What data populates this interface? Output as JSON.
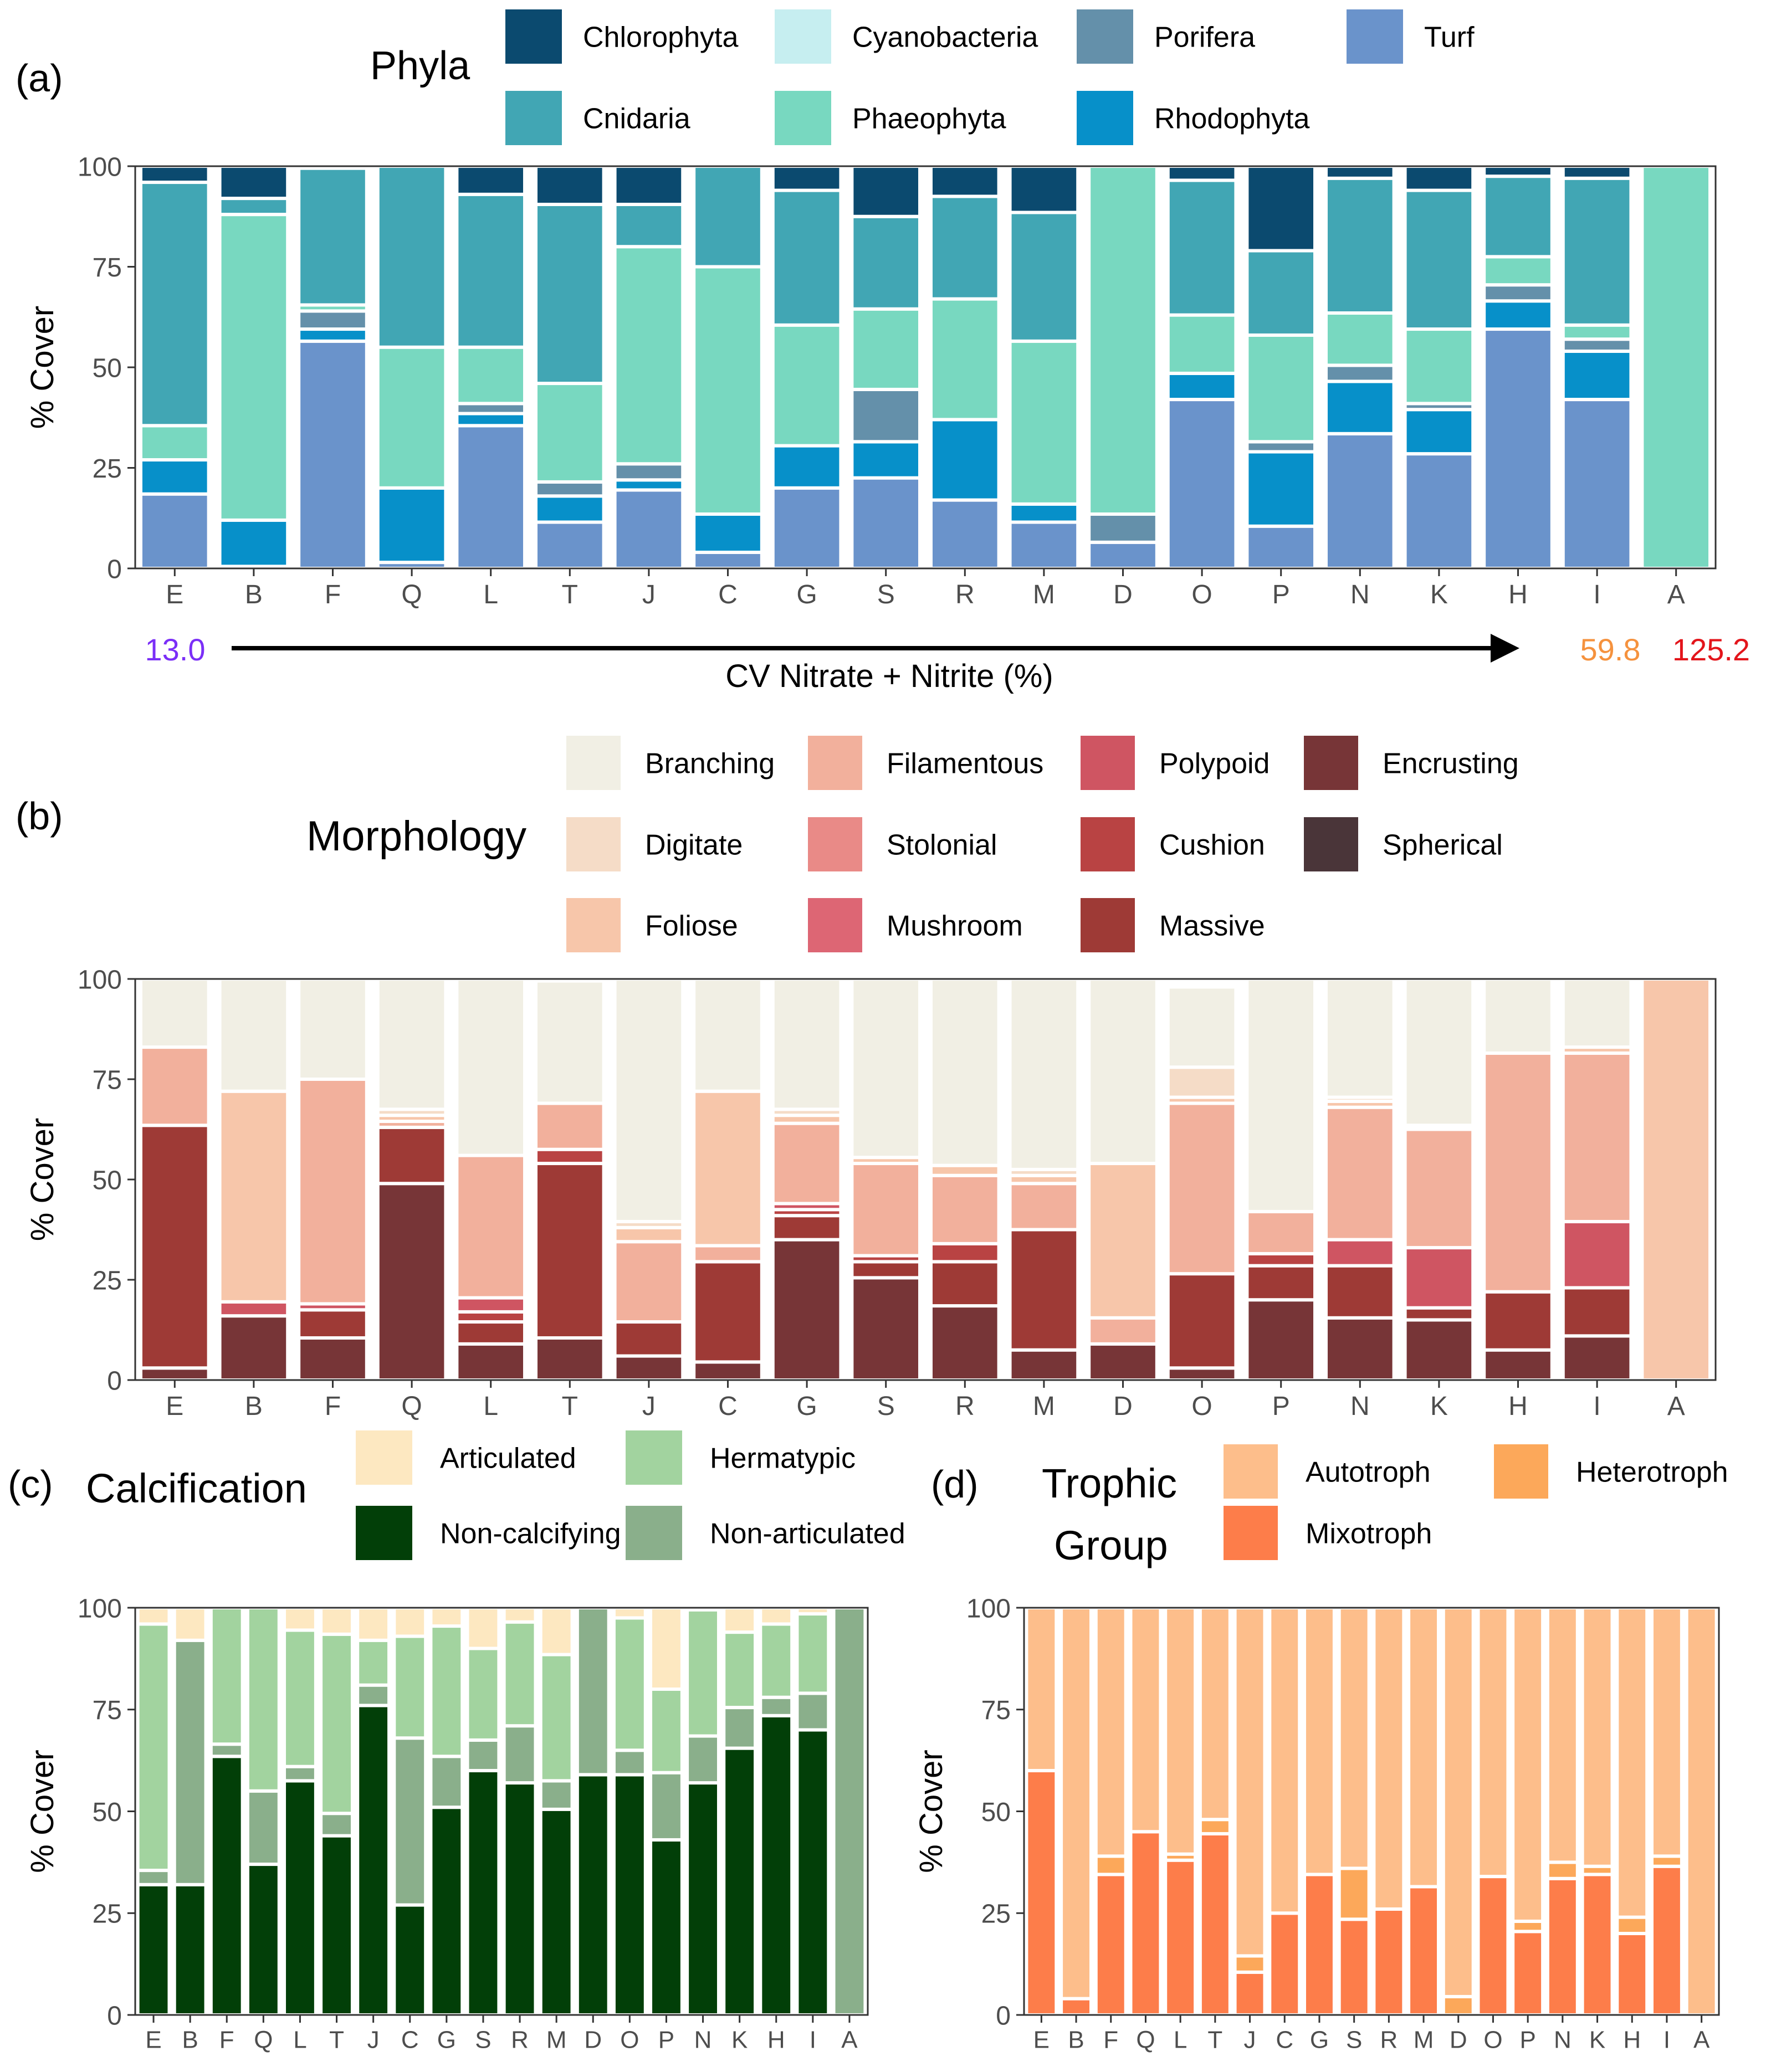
{
  "sites": [
    "E",
    "B",
    "F",
    "Q",
    "L",
    "T",
    "J",
    "C",
    "G",
    "S",
    "R",
    "M",
    "D",
    "O",
    "P",
    "N",
    "K",
    "H",
    "I",
    "A"
  ],
  "gradient": {
    "low_label": "13.0",
    "low_color": "#7b2ff7",
    "mid_label": "59.8",
    "mid_color": "#f5923e",
    "high_label": "125.2",
    "high_color": "#e3151b",
    "title": "CV Nitrate + Nitrite (%)"
  },
  "chart_data": [
    {
      "id": "a",
      "panel_label": "(a)",
      "type": "bar",
      "stacked": true,
      "title": "",
      "legend_title": "Phyla",
      "legend_position": "top",
      "ylabel": "% Cover",
      "xlabel": "",
      "ylim": [
        0,
        100
      ],
      "yticks": [
        0,
        25,
        50,
        75,
        100
      ],
      "categories": [
        "E",
        "B",
        "F",
        "Q",
        "L",
        "T",
        "J",
        "C",
        "G",
        "S",
        "R",
        "M",
        "D",
        "O",
        "P",
        "N",
        "K",
        "H",
        "I",
        "A"
      ],
      "legend": [
        {
          "name": "Chlorophyta",
          "color": "#0b4a6f"
        },
        {
          "name": "Cyanobacteria",
          "color": "#c6eef0"
        },
        {
          "name": "Porifera",
          "color": "#6490aa"
        },
        {
          "name": "Turf",
          "color": "#6a93cb"
        },
        {
          "name": "Cnidaria",
          "color": "#41a6b4"
        },
        {
          "name": "Phaeophyta",
          "color": "#78d8c0"
        },
        {
          "name": "Rhodophyta",
          "color": "#0790c9"
        }
      ],
      "series": [
        {
          "name": "Turf",
          "color": "#6a93cb",
          "values": [
            18.5,
            0.5,
            56.5,
            1.5,
            35.5,
            11.5,
            19.5,
            4,
            20,
            22.5,
            17,
            11.5,
            6.5,
            42,
            10.5,
            33.5,
            28.5,
            59.5,
            42,
            0
          ]
        },
        {
          "name": "Rhodophyta",
          "color": "#0790c9",
          "values": [
            8.5,
            11.5,
            3,
            18.5,
            3,
            6.5,
            2.5,
            9.5,
            10.5,
            9,
            20,
            4.5,
            0,
            6.5,
            18.5,
            13,
            11,
            7,
            12,
            0
          ]
        },
        {
          "name": "Porifera",
          "color": "#6490aa",
          "values": [
            0,
            0,
            4.5,
            0,
            2.5,
            3.5,
            4,
            0,
            0,
            13,
            0,
            0,
            7,
            0,
            2.5,
            4,
            1.5,
            4,
            3,
            0
          ]
        },
        {
          "name": "Cyanobacteria",
          "color": "#c6eef0",
          "values": [
            0,
            0,
            0,
            0,
            0,
            0,
            0,
            0,
            0,
            0,
            0,
            0,
            0,
            0,
            0,
            0,
            0,
            0,
            0,
            0
          ]
        },
        {
          "name": "Phaeophyta",
          "color": "#78d8c0",
          "values": [
            8.5,
            76,
            1.5,
            35,
            14,
            24.5,
            54,
            61.5,
            30,
            20,
            30,
            40.5,
            86.5,
            14.5,
            26.5,
            13,
            18.5,
            7,
            3.5,
            100
          ]
        },
        {
          "name": "Cnidaria",
          "color": "#41a6b4",
          "values": [
            60.5,
            4,
            34,
            45,
            38,
            44.5,
            10.5,
            25,
            33.5,
            23,
            25.5,
            32,
            0,
            33.5,
            21,
            33.5,
            34.5,
            20,
            36.5,
            0
          ]
        },
        {
          "name": "Chlorophyta",
          "color": "#0b4a6f",
          "values": [
            4,
            8,
            0.5,
            0,
            7,
            9.5,
            9.5,
            0,
            6,
            12.5,
            7.5,
            11.5,
            0,
            3.5,
            21,
            3,
            6,
            2.5,
            3,
            0
          ]
        }
      ]
    },
    {
      "id": "b",
      "panel_label": "(b)",
      "type": "bar",
      "stacked": true,
      "title": "",
      "legend_title": "Morphology",
      "legend_position": "top",
      "ylabel": "% Cover",
      "xlabel": "",
      "ylim": [
        0,
        100
      ],
      "yticks": [
        0,
        25,
        50,
        75,
        100
      ],
      "categories": [
        "E",
        "B",
        "F",
        "Q",
        "L",
        "T",
        "J",
        "C",
        "G",
        "S",
        "R",
        "M",
        "D",
        "O",
        "P",
        "N",
        "K",
        "H",
        "I",
        "A"
      ],
      "legend": [
        {
          "name": "Branching",
          "color": "#f1efe4"
        },
        {
          "name": "Filamentous",
          "color": "#f2b09c"
        },
        {
          "name": "Polypoid",
          "color": "#cf5562"
        },
        {
          "name": "Encrusting",
          "color": "#773537"
        },
        {
          "name": "Digitate",
          "color": "#f5dcc7"
        },
        {
          "name": "Stolonial",
          "color": "#e98a87"
        },
        {
          "name": "Cushion",
          "color": "#b94343"
        },
        {
          "name": "Spherical",
          "color": "#4a3539"
        },
        {
          "name": "Foliose",
          "color": "#f7c6aa"
        },
        {
          "name": "Mushroom",
          "color": "#dd6674"
        },
        {
          "name": "Massive",
          "color": "#9e3a36"
        }
      ],
      "series": [
        {
          "name": "Spherical",
          "color": "#4a3539",
          "values": [
            0,
            0,
            0,
            0,
            0,
            0,
            0,
            0,
            0,
            0,
            0,
            0,
            0,
            0,
            0,
            0,
            0,
            0,
            0,
            0
          ]
        },
        {
          "name": "Encrusting",
          "color": "#773537",
          "values": [
            3,
            16,
            10.5,
            49,
            9,
            10.5,
            6,
            4.5,
            35,
            25.5,
            18.5,
            7.5,
            9,
            3,
            20,
            15.5,
            15,
            7.5,
            11,
            0
          ]
        },
        {
          "name": "Massive",
          "color": "#9e3a36",
          "values": [
            60.5,
            0,
            7,
            14,
            5.5,
            43.5,
            8.5,
            25,
            6,
            4,
            11,
            30,
            0,
            23.5,
            8.5,
            13,
            3,
            14.5,
            12,
            0
          ]
        },
        {
          "name": "Cushion",
          "color": "#b94343",
          "values": [
            0,
            0,
            0,
            0,
            2.5,
            3.5,
            0,
            0,
            1.5,
            1.5,
            4.5,
            0,
            0,
            0,
            3,
            0,
            0,
            0,
            0,
            0
          ]
        },
        {
          "name": "Mushroom",
          "color": "#dd6674",
          "values": [
            0,
            0,
            0,
            0,
            0,
            0,
            0,
            0,
            0,
            0,
            0,
            0,
            0,
            0,
            0,
            0,
            0,
            0,
            0,
            0
          ]
        },
        {
          "name": "Polypoid",
          "color": "#cf5562",
          "values": [
            0,
            3.5,
            1.5,
            0,
            3.5,
            0,
            0,
            0,
            1.5,
            0,
            0,
            0,
            0,
            0,
            0,
            6.5,
            15,
            0,
            16.5,
            0
          ]
        },
        {
          "name": "Stolonial",
          "color": "#e98a87",
          "values": [
            0,
            0,
            0,
            0,
            0,
            0,
            0,
            0,
            0,
            0,
            0,
            0,
            0,
            0,
            0,
            0,
            0,
            0,
            0,
            0
          ]
        },
        {
          "name": "Filamentous",
          "color": "#f2b09c",
          "values": [
            19.5,
            0,
            56,
            1.5,
            35.5,
            11.5,
            20,
            4,
            20,
            23,
            17,
            11.5,
            6.5,
            42.5,
            10.5,
            33,
            29.5,
            59.5,
            42,
            0
          ]
        },
        {
          "name": "Foliose",
          "color": "#f7c6aa",
          "values": [
            0,
            52.5,
            0,
            1.5,
            0,
            0,
            3.5,
            38.5,
            2,
            1.5,
            2.5,
            2,
            38.5,
            1.5,
            0,
            1.5,
            0.5,
            0,
            1.5,
            100
          ]
        },
        {
          "name": "Digitate",
          "color": "#f5dcc7",
          "values": [
            0,
            0,
            0,
            1.5,
            0,
            0,
            1.5,
            0,
            1.5,
            0,
            0,
            1.5,
            0,
            7.5,
            0,
            1,
            0.5,
            0,
            0,
            0
          ]
        },
        {
          "name": "Branching",
          "color": "#f1efe4",
          "values": [
            17,
            28,
            25,
            32.5,
            44,
            30.5,
            60.5,
            28,
            32.5,
            44.5,
            46.5,
            47.5,
            46,
            20,
            58,
            29.5,
            36.5,
            18.5,
            17,
            0
          ]
        }
      ]
    },
    {
      "id": "c",
      "panel_label": "(c)",
      "type": "bar",
      "stacked": true,
      "title": "",
      "legend_title": "Calcification",
      "legend_position": "top",
      "ylabel": "% Cover",
      "xlabel": "",
      "ylim": [
        0,
        100
      ],
      "yticks": [
        0,
        25,
        50,
        75,
        100
      ],
      "categories": [
        "E",
        "B",
        "F",
        "Q",
        "L",
        "T",
        "J",
        "C",
        "G",
        "S",
        "R",
        "M",
        "D",
        "O",
        "P",
        "N",
        "K",
        "H",
        "I",
        "A"
      ],
      "legend": [
        {
          "name": "Articulated",
          "color": "#fde8c1"
        },
        {
          "name": "Hermatypic",
          "color": "#a2d39f"
        },
        {
          "name": "Non-calcifying",
          "color": "#023f08"
        },
        {
          "name": "Non-articulated",
          "color": "#8aaf8b"
        }
      ],
      "series": [
        {
          "name": "Non-calcifying",
          "color": "#023f08",
          "values": [
            32,
            32,
            63.5,
            37,
            57.5,
            44,
            76,
            27,
            51,
            60,
            57,
            50.5,
            59,
            59,
            43,
            57,
            65.5,
            73.5,
            70,
            0
          ]
        },
        {
          "name": "Non-articulated",
          "color": "#8aaf8b",
          "values": [
            3.5,
            60,
            3,
            18,
            3.5,
            5.5,
            5,
            41,
            12.5,
            7.5,
            14,
            7,
            41,
            6,
            16.5,
            11.5,
            10,
            4.5,
            9,
            100
          ]
        },
        {
          "name": "Hermatypic",
          "color": "#a2d39f",
          "values": [
            60.5,
            0,
            33.5,
            45,
            33.5,
            44,
            11,
            25,
            32,
            22.5,
            25.5,
            31,
            0,
            32.5,
            20.5,
            31,
            18.5,
            18,
            19.5,
            0
          ]
        },
        {
          "name": "Articulated",
          "color": "#fde8c1",
          "values": [
            4,
            8,
            0,
            0,
            5.5,
            6.5,
            8,
            7,
            4.5,
            10,
            3.5,
            11.5,
            0,
            2.5,
            20,
            0.5,
            6,
            4,
            1.5,
            0
          ]
        }
      ]
    },
    {
      "id": "d",
      "panel_label": "(d)",
      "type": "bar",
      "stacked": true,
      "title": "",
      "legend_title": "Trophic Group",
      "legend_title_lines": [
        "Trophic",
        "Group"
      ],
      "legend_position": "top",
      "ylabel": "% Cover",
      "xlabel": "",
      "ylim": [
        0,
        100
      ],
      "yticks": [
        0,
        25,
        50,
        75,
        100
      ],
      "categories": [
        "E",
        "B",
        "F",
        "Q",
        "L",
        "T",
        "J",
        "C",
        "G",
        "S",
        "R",
        "M",
        "D",
        "O",
        "P",
        "N",
        "K",
        "H",
        "I",
        "A"
      ],
      "legend": [
        {
          "name": "Autotroph",
          "color": "#fdbe8b"
        },
        {
          "name": "Heterotroph",
          "color": "#fca85a"
        },
        {
          "name": "Mixotroph",
          "color": "#fd7d4a"
        }
      ],
      "series": [
        {
          "name": "Mixotroph",
          "color": "#fd7d4a",
          "values": [
            60,
            4,
            34.5,
            45,
            38,
            44.5,
            10.5,
            25,
            34.5,
            23.5,
            26,
            31.5,
            0,
            34,
            20.5,
            33.5,
            34.5,
            20,
            36.5,
            0
          ]
        },
        {
          "name": "Heterotroph",
          "color": "#fca85a",
          "values": [
            0,
            0,
            4.5,
            0,
            1.5,
            3.5,
            4,
            0,
            0,
            12.5,
            0,
            0,
            4.5,
            0,
            2.5,
            4,
            2,
            4,
            2.5,
            0
          ]
        },
        {
          "name": "Autotroph",
          "color": "#fdbe8b",
          "values": [
            40,
            96,
            61,
            55,
            60.5,
            52,
            85.5,
            75,
            65.5,
            64,
            74,
            68.5,
            95.5,
            66,
            77,
            62.5,
            63.5,
            76,
            61,
            100
          ]
        }
      ]
    }
  ]
}
